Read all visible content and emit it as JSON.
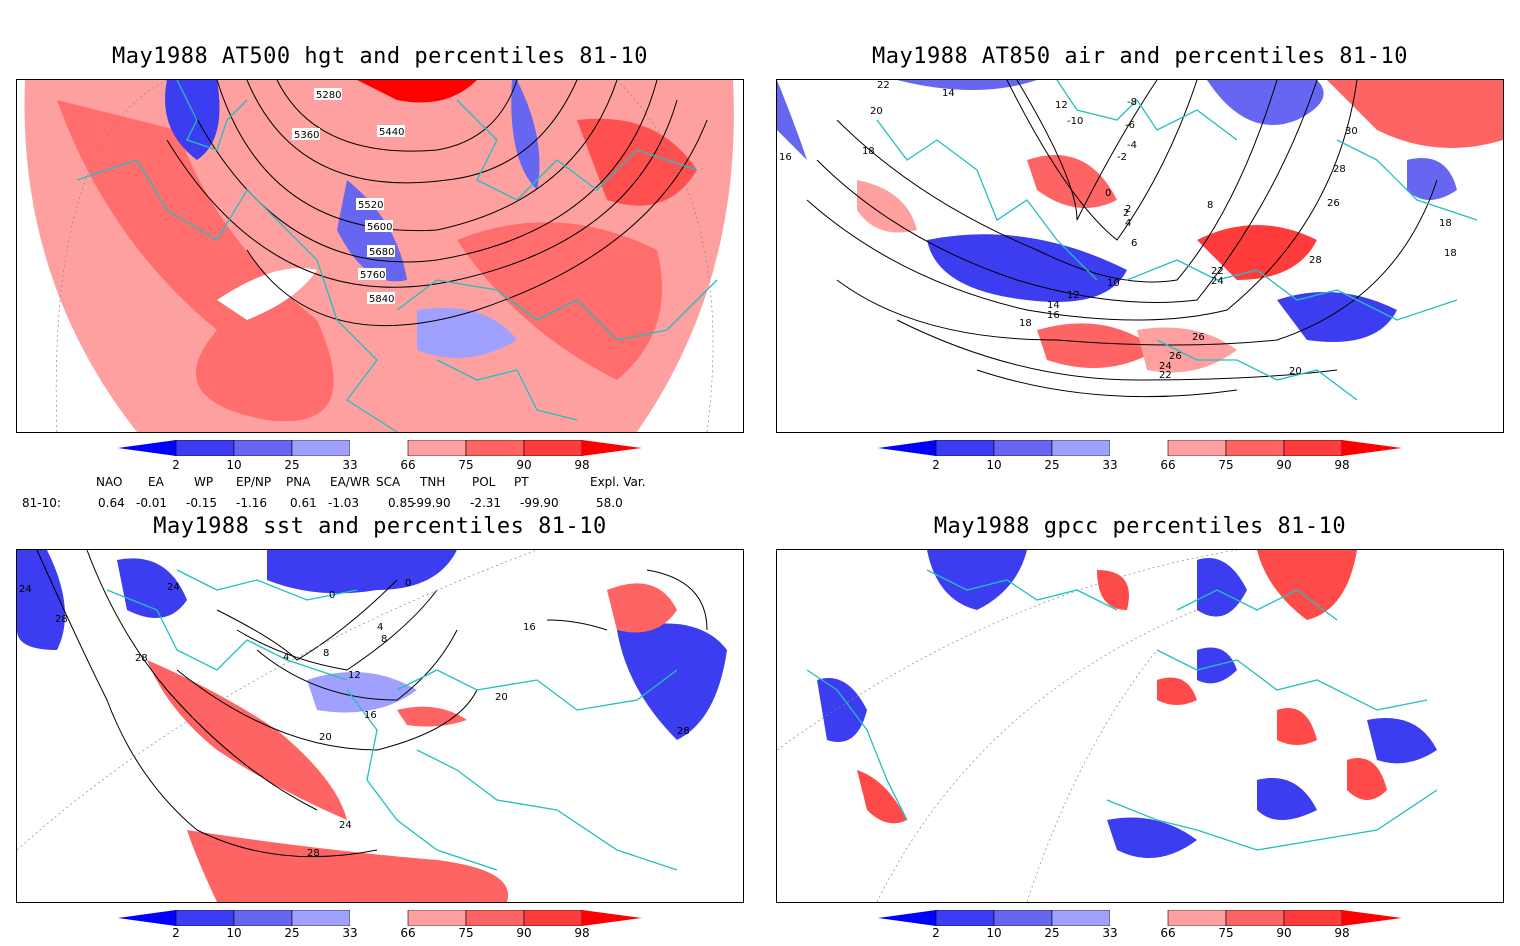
{
  "panels": [
    {
      "title": "May1988 AT500 hgt and percentiles 81-10",
      "contour_labels": [
        "5280",
        "5360",
        "5440",
        "5520",
        "5600",
        "5680",
        "5760",
        "5840"
      ]
    },
    {
      "title": "May1988 AT850 air and percentiles 81-10",
      "contour_labels": [
        "22",
        "14",
        "12",
        "-10",
        "-8",
        "-6",
        "-4",
        "-2",
        "2",
        "0",
        "20",
        "18",
        "16",
        "8",
        "26",
        "18",
        "30",
        "28",
        "2",
        "4",
        "6",
        "10",
        "12",
        "14",
        "16",
        "18",
        "22",
        "24",
        "26",
        "28",
        "26",
        "24",
        "22",
        "20",
        "18"
      ]
    },
    {
      "title": "May1988 sst and percentiles 81-10",
      "contour_labels": [
        "24",
        "28",
        "24",
        "28",
        "0",
        "0",
        "4",
        "8",
        "4",
        "8",
        "12",
        "16",
        "20",
        "20",
        "16",
        "24",
        "28",
        "28"
      ]
    },
    {
      "title": "May1988 gpcc percentiles 81-10",
      "contour_labels": []
    }
  ],
  "colorbar": {
    "labels": [
      "2",
      "10",
      "25",
      "33",
      "66",
      "75",
      "90",
      "98"
    ],
    "colors": [
      "#0000ff",
      "#3c3cf5",
      "#6666f0",
      "#a0a0ff",
      "#ffffff",
      "#ffa0a0",
      "#ff6464",
      "#ff3c3c",
      "#ff0000"
    ]
  },
  "indices": {
    "headers": [
      "NAO",
      "EA",
      "WP",
      "EP/NP",
      "PNA",
      "EA/WR",
      "SCA",
      "TNH",
      "POL",
      "PT",
      "Expl. Var."
    ],
    "row_label": "81-10:",
    "values": [
      "0.64",
      "-0.01",
      "-0.15",
      "-1.16",
      "0.61",
      "-1.03",
      "0.85",
      "-99.90",
      "-2.31",
      "-99.90",
      "58.0"
    ]
  },
  "colors": {
    "coast": "#20c0c0",
    "contour": "#000000",
    "pos": "#ff4a4a",
    "neg": "#3c3cf0"
  }
}
